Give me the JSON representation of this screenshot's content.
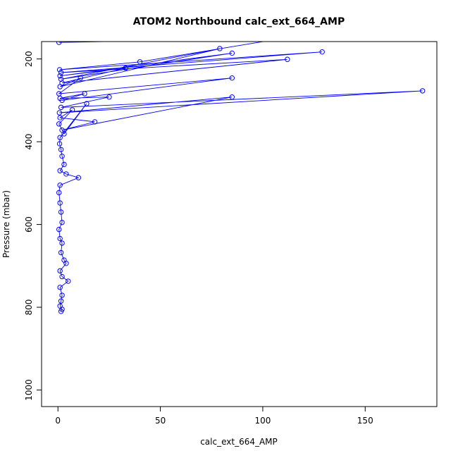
{
  "chart_data": {
    "type": "line",
    "title": "ATOM2 Northbound calc_ext_664_AMP",
    "xlabel": "calc_ext_664_AMP",
    "ylabel": "Pressure (mbar)",
    "xlim": [
      -8,
      185
    ],
    "ylim": [
      1040,
      158
    ],
    "y_inverted": true,
    "xticks": [
      0,
      50,
      100,
      150
    ],
    "yticks": [
      200,
      400,
      600,
      800,
      1000
    ],
    "grid": false,
    "color": "#0000ff",
    "marker": "open-circle",
    "series": [
      {
        "values": [
          [
            0.5,
            160
          ],
          [
            110,
            150
          ],
          [
            40,
            207
          ],
          [
            0.8,
            226
          ],
          [
            129,
            183
          ],
          [
            1.5,
            233
          ],
          [
            112,
            201
          ],
          [
            2,
            258
          ],
          [
            33,
            222
          ],
          [
            1,
            241
          ],
          [
            85,
            186
          ],
          [
            1.5,
            249
          ],
          [
            79,
            175
          ],
          [
            1,
            267
          ],
          [
            11,
            246
          ],
          [
            0.5,
            284
          ],
          [
            85,
            246
          ],
          [
            2,
            300
          ],
          [
            13,
            284
          ],
          [
            1,
            295
          ],
          [
            25,
            292
          ],
          [
            1.5,
            317
          ],
          [
            178,
            277
          ],
          [
            0.7,
            330
          ],
          [
            85,
            292
          ],
          [
            2,
            372
          ],
          [
            18,
            352
          ],
          [
            1,
            342
          ],
          [
            7,
            323
          ],
          [
            0.5,
            357
          ],
          [
            3,
            381
          ],
          [
            14,
            308
          ],
          [
            1,
            390
          ],
          [
            0.8,
            405
          ],
          [
            1.5,
            419
          ],
          [
            2,
            435
          ],
          [
            3,
            455
          ],
          [
            1,
            470
          ],
          [
            4,
            478
          ],
          [
            10,
            487
          ],
          [
            1,
            505
          ],
          [
            0.5,
            523
          ],
          [
            1,
            548
          ],
          [
            1.5,
            570
          ],
          [
            2,
            595
          ],
          [
            0.5,
            612
          ],
          [
            1,
            634
          ],
          [
            2,
            645
          ],
          [
            1.5,
            668
          ],
          [
            3,
            686
          ],
          [
            4,
            694
          ],
          [
            1,
            712
          ],
          [
            2,
            726
          ],
          [
            5,
            737
          ],
          [
            1,
            752
          ],
          [
            2,
            771
          ],
          [
            1.5,
            785
          ],
          [
            1,
            797
          ],
          [
            2,
            805
          ],
          [
            1.5,
            810
          ]
        ]
      }
    ]
  }
}
